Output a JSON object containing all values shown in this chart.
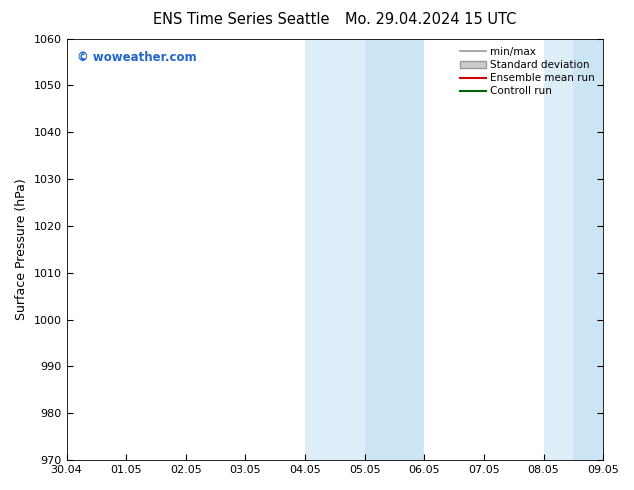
{
  "title_left": "ENS Time Series Seattle",
  "title_right": "Mo. 29.04.2024 15 UTC",
  "ylabel": "Surface Pressure (hPa)",
  "ylim": [
    970,
    1060
  ],
  "yticks": [
    970,
    980,
    990,
    1000,
    1010,
    1020,
    1030,
    1040,
    1050,
    1060
  ],
  "x_labels": [
    "30.04",
    "01.05",
    "02.05",
    "03.05",
    "04.05",
    "05.05",
    "06.05",
    "07.05",
    "08.05",
    "09.05"
  ],
  "x_values": [
    0,
    1,
    2,
    3,
    4,
    5,
    6,
    7,
    8,
    9
  ],
  "shaded_bands": [
    {
      "xmin": 4.0,
      "xmax": 5.0,
      "color": "#ddeef8"
    },
    {
      "xmin": 5.0,
      "xmax": 6.0,
      "color": "#cce5f5"
    },
    {
      "xmin": 8.0,
      "xmax": 8.5,
      "color": "#ddeef8"
    },
    {
      "xmin": 8.5,
      "xmax": 9.0,
      "color": "#cce5f5"
    }
  ],
  "legend_entries": [
    {
      "label": "min/max",
      "type": "line",
      "color": "#999999",
      "lw": 1.2
    },
    {
      "label": "Standard deviation",
      "type": "patch",
      "facecolor": "#cccccc",
      "edgecolor": "#999999"
    },
    {
      "label": "Ensemble mean run",
      "type": "line",
      "color": "#cc0000",
      "lw": 1.5
    },
    {
      "label": "Controll run",
      "type": "line",
      "color": "#006600",
      "lw": 1.5
    }
  ],
  "watermark": "© woweather.com",
  "watermark_color": "#2266cc",
  "bg_color": "#ffffff",
  "plot_bg_color": "#ffffff",
  "title_fontsize": 10.5,
  "axis_label_fontsize": 9,
  "tick_fontsize": 8,
  "legend_fontsize": 7.5,
  "figsize": [
    6.34,
    4.9
  ],
  "dpi": 100
}
